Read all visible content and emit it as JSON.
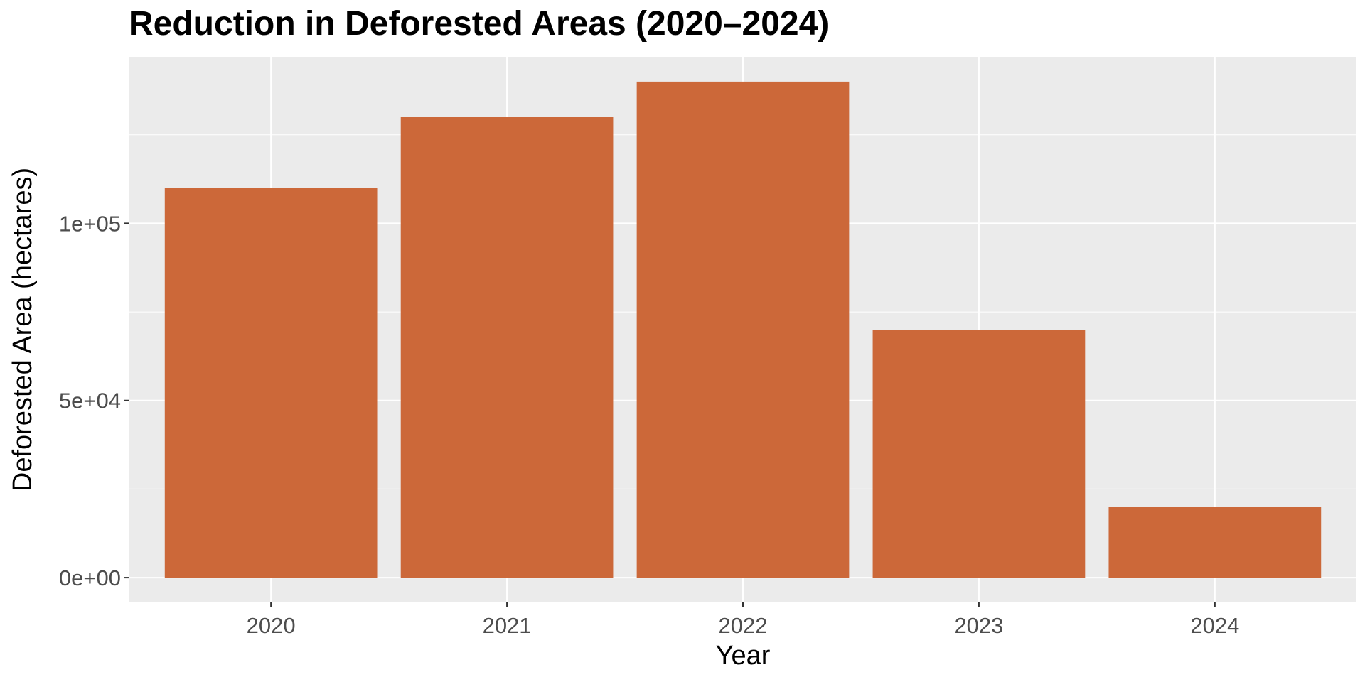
{
  "chart_data": {
    "type": "bar",
    "title": "Reduction in Deforested Areas (2020–2024)",
    "xlabel": "Year",
    "ylabel": "Deforested Area (hectares)",
    "categories": [
      "2020",
      "2021",
      "2022",
      "2023",
      "2024"
    ],
    "values": [
      110000,
      130000,
      140000,
      70000,
      20000
    ],
    "ylim": [
      -7000,
      147000
    ],
    "yticks": [
      0,
      50000,
      100000
    ],
    "ytick_labels": [
      "0e+00",
      "5e+04",
      "1e+05"
    ],
    "grid": true,
    "legend": "none",
    "colors": {
      "bar": "#cc6839",
      "panel_background": "#ebebeb",
      "grid": "#ffffff"
    }
  }
}
